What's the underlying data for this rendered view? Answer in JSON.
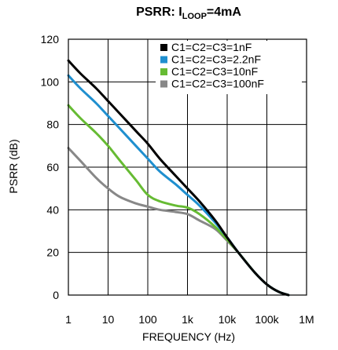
{
  "chart_data": {
    "type": "line",
    "title": {
      "prefix": "PSRR: I",
      "subscript": "LOOP",
      "suffix": "=4mA"
    },
    "xlabel": "FREQUENCY (Hz)",
    "ylabel": "PSRR (dB)",
    "x_scale": "log",
    "xlim": [
      1,
      1000000
    ],
    "ylim": [
      0,
      120
    ],
    "grid": true,
    "legend_position": "top-right",
    "x_ticks": [
      {
        "value": 1,
        "label": "1"
      },
      {
        "value": 10,
        "label": "10"
      },
      {
        "value": 100,
        "label": "100"
      },
      {
        "value": 1000,
        "label": "1k"
      },
      {
        "value": 10000,
        "label": "10k"
      },
      {
        "value": 100000,
        "label": "100k"
      },
      {
        "value": 1000000,
        "label": "1M"
      }
    ],
    "y_ticks": [
      {
        "value": 0,
        "label": "0"
      },
      {
        "value": 20,
        "label": "20"
      },
      {
        "value": 40,
        "label": "40"
      },
      {
        "value": 60,
        "label": "60"
      },
      {
        "value": 80,
        "label": "80"
      },
      {
        "value": 100,
        "label": "100"
      },
      {
        "value": 120,
        "label": "120"
      }
    ],
    "series": [
      {
        "name": "C1=C2=C3=1nF",
        "color": "#000000",
        "points": [
          [
            1,
            110
          ],
          [
            2,
            104
          ],
          [
            5,
            97
          ],
          [
            10,
            91
          ],
          [
            20,
            85
          ],
          [
            50,
            77
          ],
          [
            100,
            71
          ],
          [
            200,
            64
          ],
          [
            500,
            56
          ],
          [
            1000,
            50
          ],
          [
            2000,
            44
          ],
          [
            5000,
            35
          ],
          [
            10000,
            27
          ],
          [
            20000,
            19.5
          ],
          [
            50000,
            10.5
          ],
          [
            100000,
            5
          ],
          [
            200000,
            1.5
          ],
          [
            350000,
            0
          ]
        ]
      },
      {
        "name": "C1=C2=C3=2.2nF",
        "color": "#1f8fcf",
        "points": [
          [
            1,
            103
          ],
          [
            2,
            97
          ],
          [
            5,
            90
          ],
          [
            10,
            84
          ],
          [
            20,
            78
          ],
          [
            50,
            70
          ],
          [
            100,
            64
          ],
          [
            200,
            58
          ],
          [
            500,
            52
          ],
          [
            1000,
            47
          ],
          [
            2000,
            42
          ],
          [
            5000,
            34
          ],
          [
            10000,
            27
          ],
          [
            20000,
            19.5
          ],
          [
            50000,
            10.5
          ],
          [
            100000,
            5
          ],
          [
            200000,
            1.5
          ],
          [
            350000,
            0
          ]
        ]
      },
      {
        "name": "C1=C2=C3=10nF",
        "color": "#66bb33",
        "points": [
          [
            1,
            89
          ],
          [
            2,
            83
          ],
          [
            5,
            76
          ],
          [
            10,
            70
          ],
          [
            20,
            63
          ],
          [
            50,
            54
          ],
          [
            100,
            47
          ],
          [
            200,
            44
          ],
          [
            500,
            42
          ],
          [
            1000,
            41
          ],
          [
            2000,
            38
          ],
          [
            5000,
            32
          ],
          [
            10000,
            26
          ],
          [
            20000,
            19.5
          ],
          [
            50000,
            10.5
          ],
          [
            100000,
            5
          ],
          [
            200000,
            1.5
          ],
          [
            350000,
            0
          ]
        ]
      },
      {
        "name": "C1=C2=C3=100nF",
        "color": "#888888",
        "points": [
          [
            1,
            69
          ],
          [
            2,
            63
          ],
          [
            5,
            55
          ],
          [
            10,
            50
          ],
          [
            20,
            46
          ],
          [
            50,
            43
          ],
          [
            100,
            41.5
          ],
          [
            200,
            40
          ],
          [
            500,
            39
          ],
          [
            1000,
            38
          ],
          [
            2000,
            35
          ],
          [
            5000,
            31
          ],
          [
            10000,
            25.5
          ],
          [
            20000,
            19.5
          ],
          [
            50000,
            10.5
          ],
          [
            100000,
            5
          ],
          [
            200000,
            1.5
          ],
          [
            350000,
            0
          ]
        ]
      }
    ]
  }
}
